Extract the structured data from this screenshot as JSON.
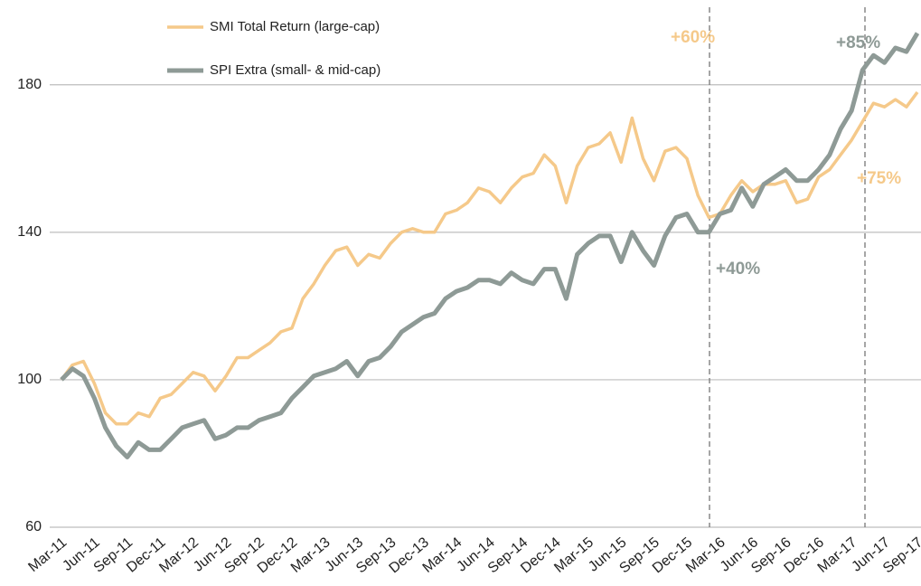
{
  "chart_data": {
    "type": "line",
    "categories": [
      "Mar-11",
      null,
      null,
      "Jun-11",
      null,
      null,
      "Sep-11",
      null,
      null,
      "Dec-11",
      null,
      null,
      "Mar-12",
      null,
      null,
      "Jun-12",
      null,
      null,
      "Sep-12",
      null,
      null,
      "Dec-12",
      null,
      null,
      "Mar-13",
      null,
      null,
      "Jun-13",
      null,
      null,
      "Sep-13",
      null,
      null,
      "Dec-13",
      null,
      null,
      "Mar-14",
      null,
      null,
      "Jun-14",
      null,
      null,
      "Sep-14",
      null,
      null,
      "Dec-14",
      null,
      null,
      "Mar-15",
      null,
      null,
      "Jun-15",
      null,
      null,
      "Sep-15",
      null,
      null,
      "Dec-15",
      null,
      null,
      "Mar-16",
      null,
      null,
      "Jun-16",
      null,
      null,
      "Sep-16",
      null,
      null,
      "Dec-16",
      null,
      null,
      "Mar-17",
      null,
      null,
      "Jun-17",
      null,
      null,
      "Sep-17"
    ],
    "series": [
      {
        "name": "SMI Total Return (large-cap)",
        "color": "#f5c98a",
        "values": [
          100,
          104,
          105,
          99,
          91,
          88,
          88,
          91,
          90,
          95,
          96,
          99,
          102,
          101,
          97,
          101,
          106,
          106,
          108,
          110,
          113,
          114,
          122,
          126,
          131,
          135,
          136,
          131,
          134,
          133,
          137,
          140,
          141,
          140,
          140,
          145,
          146,
          148,
          152,
          151,
          148,
          152,
          155,
          156,
          161,
          158,
          148,
          158,
          163,
          164,
          167,
          159,
          171,
          160,
          154,
          162,
          163,
          160,
          150,
          144,
          145,
          150,
          154,
          151,
          153,
          153,
          154,
          148,
          149,
          155,
          157,
          161,
          165,
          170,
          175,
          174,
          176,
          174,
          178
        ]
      },
      {
        "name": "SPI Extra (small- & mid-cap)",
        "color": "#8e9a96",
        "values": [
          100,
          103,
          101,
          95,
          87,
          82,
          79,
          83,
          81,
          81,
          84,
          87,
          88,
          89,
          84,
          85,
          87,
          87,
          89,
          90,
          91,
          95,
          98,
          101,
          102,
          103,
          105,
          101,
          105,
          106,
          109,
          113,
          115,
          117,
          118,
          122,
          124,
          125,
          127,
          127,
          126,
          129,
          127,
          126,
          130,
          130,
          122,
          134,
          137,
          139,
          139,
          132,
          140,
          135,
          131,
          139,
          144,
          145,
          140,
          140,
          145,
          146,
          152,
          147,
          153,
          155,
          157,
          154,
          154,
          157,
          161,
          168,
          173,
          184,
          188,
          186,
          190,
          189,
          194
        ]
      }
    ],
    "annotations": [
      "+60%",
      "+85%",
      "+75%",
      "+40%"
    ],
    "ylim": [
      60,
      203
    ],
    "yticks": [
      60,
      100,
      140,
      180
    ],
    "grid": true
  }
}
